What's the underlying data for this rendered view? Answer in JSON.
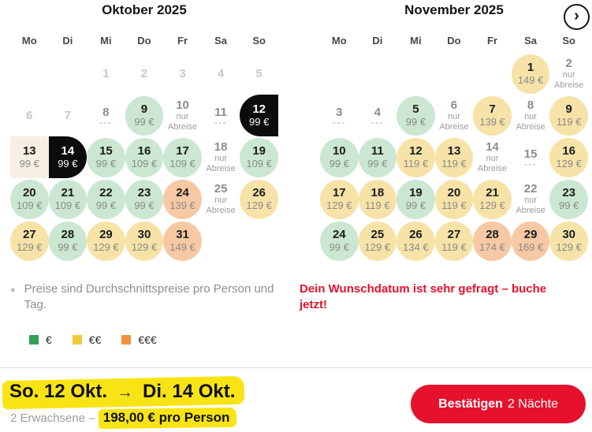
{
  "nav": {
    "next_month_icon": "›"
  },
  "colors": {
    "price_green": "#cbe7d2",
    "price_yellow": "#f7e3a8",
    "price_orange": "#f6c9a4",
    "range_cream": "#f5f0e3",
    "selected_black": "#0c0c0c",
    "marker_yellow": "#f8e414",
    "brand_red": "#e6122d"
  },
  "months": [
    {
      "key": "oktober",
      "title": "Oktober 2025",
      "weekdays": [
        "Mo",
        "Di",
        "Mi",
        "Do",
        "Fr",
        "Sa",
        "So"
      ],
      "cells": [
        {
          "t": "empty"
        },
        {
          "t": "empty"
        },
        {
          "t": "disabled",
          "d": "1"
        },
        {
          "t": "disabled",
          "d": "2"
        },
        {
          "t": "disabled",
          "d": "3"
        },
        {
          "t": "disabled",
          "d": "4"
        },
        {
          "t": "disabled",
          "d": "5"
        },
        {
          "t": "disabled",
          "d": "6"
        },
        {
          "t": "disabled",
          "d": "7"
        },
        {
          "t": "dashes",
          "d": "8",
          "sub": "---"
        },
        {
          "t": "green",
          "d": "9",
          "price": "99 €"
        },
        {
          "t": "departure",
          "d": "10",
          "sub": "nur Abreise"
        },
        {
          "t": "dashes",
          "d": "11",
          "sub": "---"
        },
        {
          "t": "sel-start",
          "d": "12",
          "price": "99 €"
        },
        {
          "t": "range",
          "d": "13",
          "price": "99 €"
        },
        {
          "t": "sel-end",
          "d": "14",
          "price": "99 €"
        },
        {
          "t": "green",
          "d": "15",
          "price": "99 €"
        },
        {
          "t": "green",
          "d": "16",
          "price": "109 €"
        },
        {
          "t": "green",
          "d": "17",
          "price": "109 €"
        },
        {
          "t": "departure",
          "d": "18",
          "sub": "nur Abreise"
        },
        {
          "t": "green",
          "d": "19",
          "price": "109 €"
        },
        {
          "t": "green",
          "d": "20",
          "price": "109 €"
        },
        {
          "t": "green",
          "d": "21",
          "price": "109 €"
        },
        {
          "t": "green",
          "d": "22",
          "price": "99 €"
        },
        {
          "t": "green",
          "d": "23",
          "price": "99 €"
        },
        {
          "t": "orange",
          "d": "24",
          "price": "139 €"
        },
        {
          "t": "departure",
          "d": "25",
          "sub": "nur Abreise"
        },
        {
          "t": "yellow",
          "d": "26",
          "price": "129 €"
        },
        {
          "t": "yellow",
          "d": "27",
          "price": "129 €"
        },
        {
          "t": "green",
          "d": "28",
          "price": "99 €"
        },
        {
          "t": "yellow",
          "d": "29",
          "price": "129 €"
        },
        {
          "t": "yellow",
          "d": "30",
          "price": "129 €"
        },
        {
          "t": "orange",
          "d": "31",
          "price": "149 €"
        },
        {
          "t": "empty"
        },
        {
          "t": "empty"
        }
      ]
    },
    {
      "key": "november",
      "title": "November 2025",
      "weekdays": [
        "Mo",
        "Di",
        "Mi",
        "Do",
        "Fr",
        "Sa",
        "So"
      ],
      "cells": [
        {
          "t": "empty"
        },
        {
          "t": "empty"
        },
        {
          "t": "empty"
        },
        {
          "t": "empty"
        },
        {
          "t": "empty"
        },
        {
          "t": "yellow",
          "d": "1",
          "price": "149 €"
        },
        {
          "t": "departure",
          "d": "2",
          "sub": "nur Abreise"
        },
        {
          "t": "dashes",
          "d": "3",
          "sub": "---"
        },
        {
          "t": "dashes",
          "d": "4",
          "sub": "---"
        },
        {
          "t": "green",
          "d": "5",
          "price": "99 €"
        },
        {
          "t": "departure",
          "d": "6",
          "sub": "nur Abreise"
        },
        {
          "t": "yellow",
          "d": "7",
          "price": "139 €"
        },
        {
          "t": "departure",
          "d": "8",
          "sub": "nur Abreise"
        },
        {
          "t": "yellow",
          "d": "9",
          "price": "119 €"
        },
        {
          "t": "green",
          "d": "10",
          "price": "99 €"
        },
        {
          "t": "green",
          "d": "11",
          "price": "99 €"
        },
        {
          "t": "yellow",
          "d": "12",
          "price": "119 €"
        },
        {
          "t": "yellow",
          "d": "13",
          "price": "119 €"
        },
        {
          "t": "departure",
          "d": "14",
          "sub": "nur Abreise"
        },
        {
          "t": "dashes",
          "d": "15",
          "sub": "---"
        },
        {
          "t": "yellow",
          "d": "16",
          "price": "129 €"
        },
        {
          "t": "yellow",
          "d": "17",
          "price": "129 €"
        },
        {
          "t": "yellow",
          "d": "18",
          "price": "119 €"
        },
        {
          "t": "green",
          "d": "19",
          "price": "99 €"
        },
        {
          "t": "yellow",
          "d": "20",
          "price": "119 €"
        },
        {
          "t": "yellow",
          "d": "21",
          "price": "129 €"
        },
        {
          "t": "departure",
          "d": "22",
          "sub": "nur Abreise"
        },
        {
          "t": "green",
          "d": "23",
          "price": "99 €"
        },
        {
          "t": "green",
          "d": "24",
          "price": "99 €"
        },
        {
          "t": "yellow",
          "d": "25",
          "price": "129 €"
        },
        {
          "t": "yellow",
          "d": "26",
          "price": "134 €"
        },
        {
          "t": "yellow",
          "d": "27",
          "price": "119 €"
        },
        {
          "t": "orange",
          "d": "28",
          "price": "174 €"
        },
        {
          "t": "orange",
          "d": "29",
          "price": "169 €"
        },
        {
          "t": "yellow",
          "d": "30",
          "price": "129 €"
        }
      ]
    }
  ],
  "note": {
    "text": "Preise sind Durchschnittspreise pro Person und Tag."
  },
  "urgency": {
    "text": "Dein Wunschdatum ist sehr gefragt – buche jetzt!"
  },
  "legend": [
    {
      "label": "€",
      "color": "#2fa158"
    },
    {
      "label": "€€",
      "color": "#f2c93a"
    },
    {
      "label": "€€€",
      "color": "#f0923e"
    }
  ],
  "summary": {
    "date_from": "So. 12 Okt.",
    "arrow": "→",
    "date_to": "Di. 14 Okt.",
    "travellers": "2 Erwachsene –",
    "price": "198,00 € pro Person"
  },
  "confirm": {
    "label_bold": "Bestätigen",
    "label_rest": "2 Nächte"
  }
}
